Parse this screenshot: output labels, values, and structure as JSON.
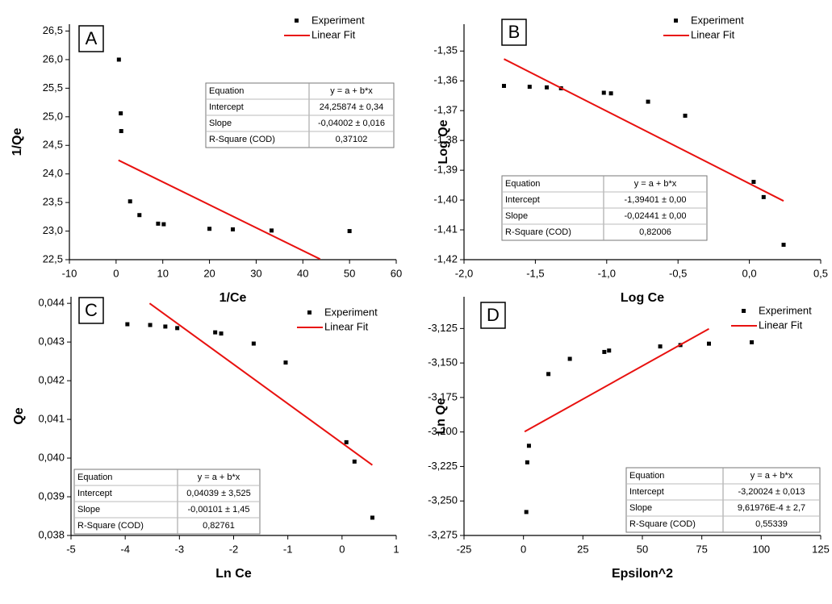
{
  "chart_data": [
    {
      "type": "scatter",
      "panel_label": "A",
      "x_label": "1/Ce",
      "y_label": "1/Qe",
      "xlim": [
        -10,
        60
      ],
      "xticks": [
        -10,
        0,
        10,
        20,
        30,
        40,
        50,
        60
      ],
      "ylim": [
        22.5,
        26.62
      ],
      "yticks": [
        {
          "value": 22.5,
          "label": "22,5"
        },
        {
          "value": 23.0,
          "label": "23,0"
        },
        {
          "value": 23.5,
          "label": "23,5"
        },
        {
          "value": 24.0,
          "label": "24,0"
        },
        {
          "value": 24.5,
          "label": "24,5"
        },
        {
          "value": 25.0,
          "label": "25,0"
        },
        {
          "value": 25.5,
          "label": "25,5"
        },
        {
          "value": 26.0,
          "label": "26,0"
        },
        {
          "value": 26.5,
          "label": "26,5"
        }
      ],
      "series": [
        {
          "name": "Experiment",
          "color": "#000000",
          "style": "marker",
          "x": [
            0.6,
            1.0,
            1.1,
            3.0,
            5.0,
            9.0,
            10.2,
            20.0,
            25.0,
            33.3,
            50.0
          ],
          "values": [
            26.0,
            25.06,
            24.75,
            23.52,
            23.28,
            23.13,
            23.12,
            23.04,
            23.03,
            23.01,
            23.0
          ]
        },
        {
          "name": "Linear Fit",
          "color": "#e8110f",
          "style": "line",
          "x": [
            0.5,
            43.7
          ],
          "values": [
            24.24,
            22.51
          ]
        }
      ],
      "table": {
        "rows": [
          [
            "Equation",
            "y = a + b*x"
          ],
          [
            "Intercept",
            "24,25874 ± 0,34"
          ],
          [
            "Slope",
            "-0,04002 ± 0,016"
          ],
          [
            "R-Square (COD)",
            "0,37102"
          ]
        ]
      }
    },
    {
      "type": "scatter",
      "panel_label": "B",
      "x_label": "Log Ce",
      "y_label": "Log Qe",
      "xlim": [
        -2.0,
        0.5
      ],
      "xticks": [
        {
          "value": -2.0,
          "label": "-2,0"
        },
        {
          "value": -1.5,
          "label": "-1,5"
        },
        {
          "value": -1.0,
          "label": "-1,0"
        },
        {
          "value": -0.5,
          "label": "-0,5"
        },
        {
          "value": 0.0,
          "label": "0,0"
        },
        {
          "value": 0.5,
          "label": "0,5"
        }
      ],
      "ylim": [
        -1.42,
        -1.341
      ],
      "yticks": [
        {
          "value": -1.42,
          "label": "-1,42"
        },
        {
          "value": -1.41,
          "label": "-1,41"
        },
        {
          "value": -1.4,
          "label": "-1,40"
        },
        {
          "value": -1.39,
          "label": "-1,39"
        },
        {
          "value": -1.38,
          "label": "-1,38"
        },
        {
          "value": -1.37,
          "label": "-1,37"
        },
        {
          "value": -1.36,
          "label": "-1,36"
        },
        {
          "value": -1.35,
          "label": "-1,35"
        }
      ],
      "series": [
        {
          "name": "Experiment",
          "color": "#000000",
          "style": "marker",
          "x": [
            -1.72,
            -1.54,
            -1.42,
            -1.32,
            -1.02,
            -0.97,
            -0.71,
            -0.45,
            0.03,
            0.1,
            0.24
          ],
          "values": [
            -1.3617,
            -1.362,
            -1.3622,
            -1.3625,
            -1.364,
            -1.3642,
            -1.367,
            -1.3717,
            -1.3939,
            -1.399,
            -1.415
          ]
        },
        {
          "name": "Linear Fit",
          "color": "#e8110f",
          "style": "line",
          "x": [
            -1.72,
            0.24
          ],
          "values": [
            -1.3527,
            -1.4003
          ]
        }
      ],
      "table": {
        "rows": [
          [
            "Equation",
            "y = a + b*x"
          ],
          [
            "Intercept",
            "-1,39401 ± 0,00"
          ],
          [
            "Slope",
            "-0,02441 ± 0,00"
          ],
          [
            "R-Square (COD)",
            "0,82006"
          ]
        ]
      }
    },
    {
      "type": "scatter",
      "panel_label": "C",
      "x_label": "Ln Ce",
      "y_label": "Qe",
      "xlim": [
        -5,
        1
      ],
      "xticks": [
        -5,
        -4,
        -3,
        -2,
        -1,
        0,
        1
      ],
      "ylim": [
        0.038,
        0.04417
      ],
      "yticks": [
        {
          "value": 0.038,
          "label": "0,038"
        },
        {
          "value": 0.039,
          "label": "0,039"
        },
        {
          "value": 0.04,
          "label": "0,040"
        },
        {
          "value": 0.041,
          "label": "0,041"
        },
        {
          "value": 0.042,
          "label": "0,042"
        },
        {
          "value": 0.043,
          "label": "0,043"
        },
        {
          "value": 0.044,
          "label": "0,044"
        }
      ],
      "series": [
        {
          "name": "Experiment",
          "color": "#000000",
          "style": "marker",
          "x": [
            -3.96,
            -3.54,
            -3.26,
            -3.04,
            -2.34,
            -2.23,
            -1.63,
            -1.04,
            0.08,
            0.23,
            0.56
          ],
          "values": [
            0.04346,
            0.04344,
            0.0434,
            0.04336,
            0.04325,
            0.04322,
            0.04296,
            0.04247,
            0.04041,
            0.03991,
            0.03846
          ]
        },
        {
          "name": "Linear Fit",
          "color": "#e8110f",
          "style": "line",
          "x": [
            -3.55,
            0.56
          ],
          "values": [
            0.044,
            0.03982
          ]
        }
      ],
      "table": {
        "rows": [
          [
            "Equation",
            "y = a + b*x"
          ],
          [
            "Intercept",
            "0,04039 ± 3,525"
          ],
          [
            "Slope",
            "-0,00101 ± 1,45"
          ],
          [
            "R-Square (COD)",
            "0,82761"
          ]
        ]
      }
    },
    {
      "type": "scatter",
      "panel_label": "D",
      "x_label": "Epsilon^2",
      "y_label": "Ln Qe",
      "xlim": [
        -25,
        125
      ],
      "xticks": [
        -25,
        0,
        25,
        50,
        75,
        100,
        125
      ],
      "ylim": [
        -3.275,
        -3.102
      ],
      "yticks": [
        {
          "value": -3.275,
          "label": "-3,275"
        },
        {
          "value": -3.25,
          "label": "-3,250"
        },
        {
          "value": -3.225,
          "label": "-3,225"
        },
        {
          "value": -3.2,
          "label": "-3,200"
        },
        {
          "value": -3.175,
          "label": "-3,175"
        },
        {
          "value": -3.15,
          "label": "-3,150"
        },
        {
          "value": -3.125,
          "label": "-3,125"
        }
      ],
      "series": [
        {
          "name": "Experiment",
          "color": "#000000",
          "style": "marker",
          "x": [
            1.2,
            1.6,
            2.3,
            10.5,
            19.5,
            34,
            36,
            57.5,
            66,
            78,
            96
          ],
          "values": [
            -3.258,
            -3.222,
            -3.21,
            -3.158,
            -3.147,
            -3.142,
            -3.141,
            -3.138,
            -3.137,
            -3.136,
            -3.135
          ]
        },
        {
          "name": "Linear Fit",
          "color": "#e8110f",
          "style": "line",
          "x": [
            0.5,
            78
          ],
          "values": [
            -3.1998,
            -3.1252
          ]
        }
      ],
      "table": {
        "rows": [
          [
            "Equation",
            "y = a + b*x"
          ],
          [
            "Intercept",
            "-3,20024 ± 0,013"
          ],
          [
            "Slope",
            "9,61976E-4 ± 2,7"
          ],
          [
            "R-Square (COD)",
            "0,55339"
          ]
        ]
      }
    }
  ]
}
